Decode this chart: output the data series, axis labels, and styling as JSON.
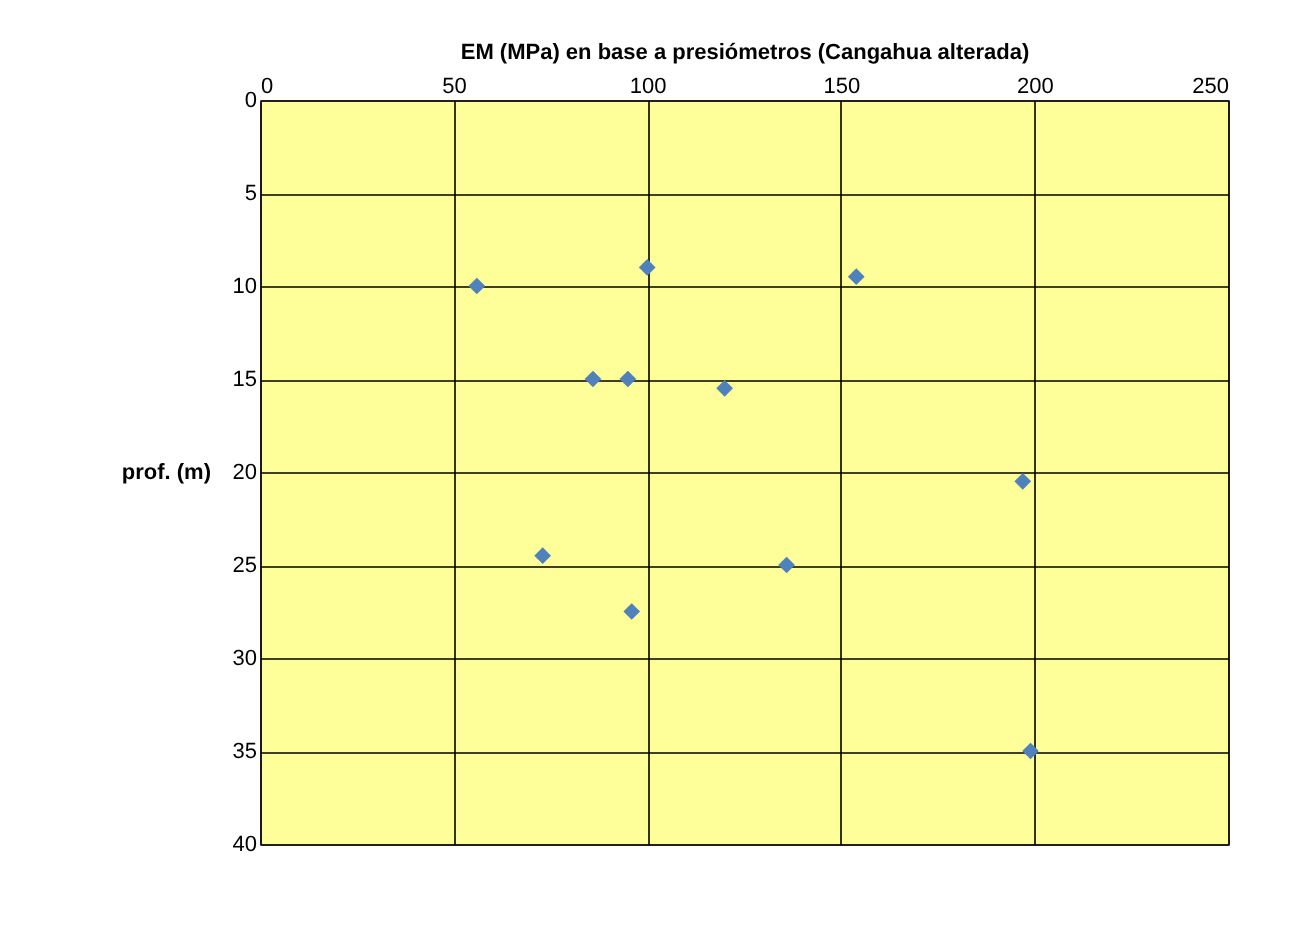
{
  "chart_data": {
    "type": "scatter",
    "xlabel": "EM (MPa)  en base a presiómetros (Cangahua  alterada)",
    "ylabel": "prof. (m)",
    "x": [
      56,
      100,
      154,
      86,
      95,
      120,
      197,
      73,
      136,
      96,
      199
    ],
    "series": [
      {
        "color": "#4f81bd",
        "values": [
          10,
          9,
          9.5,
          15,
          15,
          15.5,
          20.5,
          24.5,
          25,
          27.5,
          35
        ]
      }
    ],
    "xlim": [
      0,
      250
    ],
    "xticks": [
      0,
      50,
      100,
      150,
      200,
      250
    ],
    "ylim": [
      40,
      0
    ],
    "yticks": [
      0,
      5,
      10,
      15,
      20,
      25,
      30,
      35,
      40
    ],
    "grid": true,
    "marker": "diamond"
  }
}
